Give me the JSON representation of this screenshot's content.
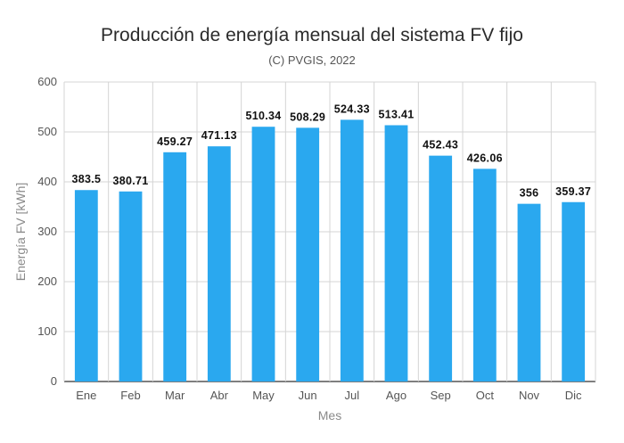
{
  "chart_data": {
    "type": "bar",
    "title": "Producción de energía mensual del sistema FV fijo",
    "subtitle": "(C) PVGIS, 2022",
    "xlabel": "Mes",
    "ylabel": "Energía FV [kWh]",
    "categories": [
      "Ene",
      "Feb",
      "Mar",
      "Abr",
      "May",
      "Jun",
      "Jul",
      "Ago",
      "Sep",
      "Oct",
      "Nov",
      "Dic"
    ],
    "values": [
      383.5,
      380.71,
      459.27,
      471.13,
      510.34,
      508.29,
      524.33,
      513.41,
      452.43,
      426.06,
      356,
      359.37
    ],
    "data_labels": [
      "383.5",
      "380.71",
      "459.27",
      "471.13",
      "510.34",
      "508.29",
      "524.33",
      "513.41",
      "452.43",
      "426.06",
      "356",
      "359.37"
    ],
    "ylim": [
      0,
      600
    ],
    "yticks": [
      "0",
      "100",
      "200",
      "300",
      "400",
      "500",
      "600"
    ],
    "grid": true,
    "legend": "none",
    "colors": {
      "bar": "#2aa8ef",
      "grid": "#d4d4d4",
      "axis": "#333333"
    }
  }
}
